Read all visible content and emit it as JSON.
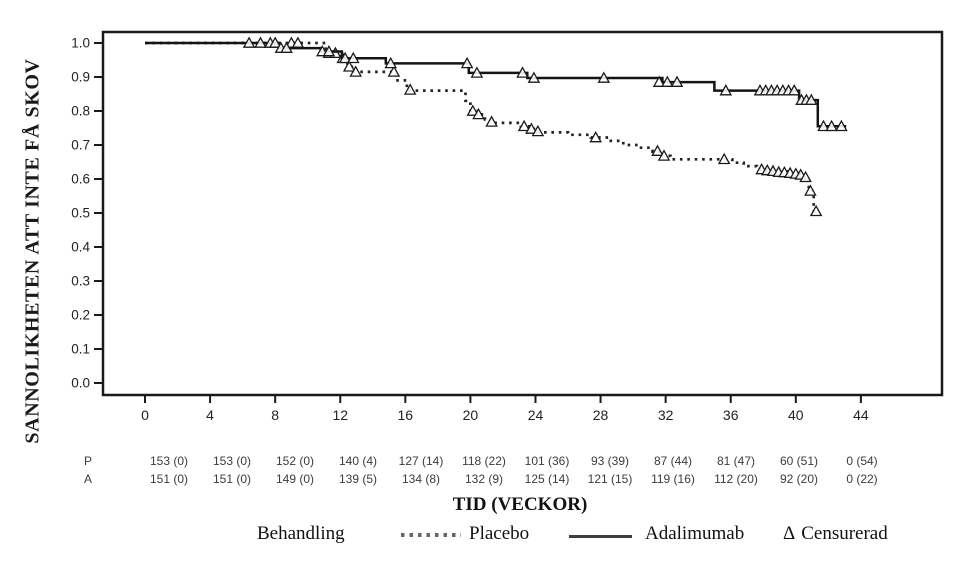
{
  "chart_data": {
    "type": "line",
    "title": "",
    "ylabel": "SANNOLIKHETEN ATT INTE FÅ SKOV",
    "xlabel": "TID (VECKOR)",
    "x_ticks": [
      0,
      4,
      8,
      12,
      16,
      20,
      24,
      28,
      32,
      36,
      40,
      44
    ],
    "y_ticks": [
      "1.0",
      "0.9",
      "0.8",
      "0.7",
      "0.6",
      "0.5",
      "0.4",
      "0.3",
      "0.2",
      "0.1",
      "0.0"
    ],
    "xlim": [
      -2.6,
      49
    ],
    "ylim": [
      -0.035,
      1.03
    ],
    "grid": false,
    "legend_position": "bottom",
    "series": [
      {
        "name": "Placebo",
        "style": "dotted",
        "color": "#222222",
        "steps": [
          [
            0,
            1.0
          ],
          [
            11.1,
            0.97
          ],
          [
            12.0,
            0.955
          ],
          [
            12.45,
            0.93
          ],
          [
            12.8,
            0.915
          ],
          [
            15.4,
            0.89
          ],
          [
            16.1,
            0.86
          ],
          [
            19.7,
            0.83
          ],
          [
            20.0,
            0.8
          ],
          [
            20.4,
            0.79
          ],
          [
            20.9,
            0.775
          ],
          [
            21.4,
            0.765
          ],
          [
            23.1,
            0.755
          ],
          [
            23.7,
            0.747
          ],
          [
            24.2,
            0.737
          ],
          [
            26.0,
            0.73
          ],
          [
            27.4,
            0.722
          ],
          [
            28.5,
            0.712
          ],
          [
            29.4,
            0.7
          ],
          [
            30.3,
            0.692
          ],
          [
            31.2,
            0.68
          ],
          [
            31.8,
            0.668
          ],
          [
            32.3,
            0.658
          ],
          [
            36.1,
            0.648
          ],
          [
            36.8,
            0.638
          ],
          [
            37.6,
            0.628
          ],
          [
            38.2,
            0.622
          ],
          [
            39.8,
            0.615
          ],
          [
            40.4,
            0.605
          ],
          [
            40.8,
            0.565
          ],
          [
            41.1,
            0.505
          ],
          [
            41.5,
            0.505
          ]
        ],
        "censored": [
          [
            9.0,
            1.0
          ],
          [
            9.4,
            1.0
          ],
          [
            11.3,
            0.97
          ],
          [
            11.7,
            0.97
          ],
          [
            12.15,
            0.955
          ],
          [
            12.55,
            0.93
          ],
          [
            12.95,
            0.915
          ],
          [
            15.3,
            0.915
          ],
          [
            16.3,
            0.862
          ],
          [
            20.15,
            0.8
          ],
          [
            20.5,
            0.79
          ],
          [
            21.3,
            0.768
          ],
          [
            23.3,
            0.755
          ],
          [
            23.75,
            0.747
          ],
          [
            24.15,
            0.74
          ],
          [
            27.7,
            0.722
          ],
          [
            31.5,
            0.682
          ],
          [
            31.9,
            0.668
          ],
          [
            35.6,
            0.658
          ],
          [
            37.9,
            0.628
          ],
          [
            38.25,
            0.625
          ],
          [
            38.6,
            0.623
          ],
          [
            38.95,
            0.62
          ],
          [
            39.3,
            0.619
          ],
          [
            39.65,
            0.617
          ],
          [
            40.0,
            0.615
          ],
          [
            40.3,
            0.612
          ],
          [
            40.6,
            0.605
          ],
          [
            40.9,
            0.565
          ],
          [
            41.25,
            0.505
          ]
        ]
      },
      {
        "name": "Adalimumab",
        "style": "solid",
        "color": "#141414",
        "steps": [
          [
            0,
            1.0
          ],
          [
            8.2,
            0.985
          ],
          [
            10.8,
            0.975
          ],
          [
            12.1,
            0.955
          ],
          [
            14.8,
            0.94
          ],
          [
            19.9,
            0.912
          ],
          [
            23.5,
            0.897
          ],
          [
            31.8,
            0.885
          ],
          [
            35.0,
            0.86
          ],
          [
            40.2,
            0.832
          ],
          [
            41.35,
            0.755
          ],
          [
            43.1,
            0.755
          ]
        ],
        "censored": [
          [
            6.4,
            1.0
          ],
          [
            7.1,
            1.0
          ],
          [
            7.7,
            1.0
          ],
          [
            8.0,
            1.0
          ],
          [
            8.35,
            0.985
          ],
          [
            8.7,
            0.985
          ],
          [
            10.9,
            0.975
          ],
          [
            11.3,
            0.975
          ],
          [
            12.3,
            0.955
          ],
          [
            12.8,
            0.955
          ],
          [
            15.1,
            0.94
          ],
          [
            19.8,
            0.94
          ],
          [
            20.4,
            0.912
          ],
          [
            23.2,
            0.912
          ],
          [
            23.9,
            0.897
          ],
          [
            28.2,
            0.897
          ],
          [
            31.6,
            0.885
          ],
          [
            32.1,
            0.885
          ],
          [
            32.7,
            0.885
          ],
          [
            35.7,
            0.86
          ],
          [
            37.8,
            0.86
          ],
          [
            38.15,
            0.86
          ],
          [
            38.5,
            0.86
          ],
          [
            38.85,
            0.86
          ],
          [
            39.2,
            0.86
          ],
          [
            39.55,
            0.86
          ],
          [
            39.9,
            0.86
          ],
          [
            40.35,
            0.832
          ],
          [
            40.65,
            0.832
          ],
          [
            40.95,
            0.832
          ],
          [
            41.7,
            0.755
          ],
          [
            42.2,
            0.755
          ],
          [
            42.8,
            0.755
          ]
        ]
      }
    ]
  },
  "risk_table": {
    "rows": [
      {
        "label": "P",
        "values": [
          "153 (0)",
          "153 (0)",
          "152 (0)",
          "140 (4)",
          "127 (14)",
          "118 (22)",
          "101 (36)",
          "93 (39)",
          "87 (44)",
          "81 (47)",
          "60 (51)",
          "0 (54)"
        ]
      },
      {
        "label": "A",
        "values": [
          "151 (0)",
          "151 (0)",
          "149 (0)",
          "139 (5)",
          "134 (8)",
          "132 (9)",
          "125 (14)",
          "121 (15)",
          "119 (16)",
          "112 (20)",
          "92 (20)",
          "0 (22)"
        ]
      }
    ]
  },
  "legend": {
    "title": "Behandling",
    "placebo": "Placebo",
    "adalimumab": "Adalimumab",
    "censored_symbol": "Δ",
    "censored": "Censurerad"
  }
}
